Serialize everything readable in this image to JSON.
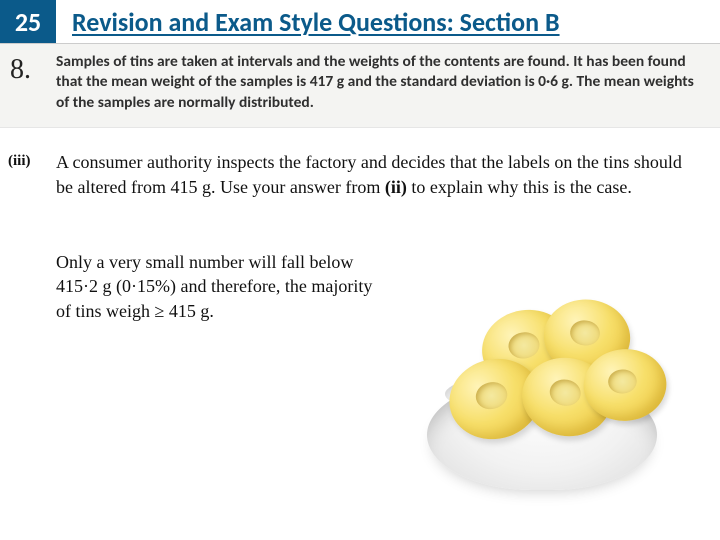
{
  "header": {
    "chapter_num": "25",
    "title": "Revision and Exam Style Questions: Section B",
    "badge_bg": "#0b5a8a",
    "title_color": "#0b5a8a"
  },
  "question": {
    "number": "8.",
    "text": "Samples of tins are taken at intervals and the weights of the contents are found. It has been found that the mean weight of the samples is 417 g and the standard deviation is 0·6 g. The mean weights of the samples are normally distributed."
  },
  "subpart": {
    "label": "(iii)",
    "text_before_bold": "A consumer authority inspects the factory and decides that the labels on the tins should be altered from 415 g. Use your answer from ",
    "bold": "(ii)",
    "text_after_bold": " to explain why this is the case."
  },
  "answer": {
    "text": "Only a very small number will fall below 415·2 g (0·15%) and therefore, the majority of tins weigh ≥ 415 g."
  },
  "image": {
    "description": "pineapple-rings-in-bowl",
    "ring_color_light": "#fff4b8",
    "ring_color_mid": "#f7df6a",
    "ring_color_dark": "#eec53e",
    "bowl_color": "#f2f2f2"
  }
}
